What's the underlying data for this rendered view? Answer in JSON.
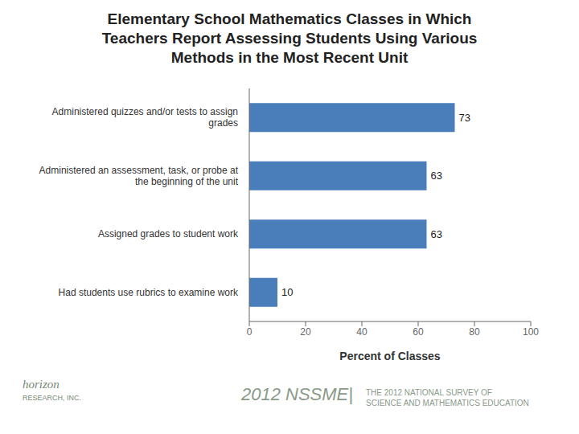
{
  "chart_data": {
    "type": "bar",
    "title": "Elementary School Mathematics Classes in Which\nTeachers Report Assessing Students Using Various\nMethods in the Most Recent Unit",
    "categories": [
      "Administered quizzes and/or tests to assign\ngrades",
      "Administered an assessment, task, or probe at\nthe beginning of the unit",
      "Assigned grades to student work",
      "Had students use rubrics to examine work"
    ],
    "values": [
      73,
      63,
      63,
      10
    ],
    "color": "#4a7eba",
    "xlabel": "Percent of Classes",
    "xlim": [
      0,
      100
    ],
    "xticks": [
      0,
      20,
      40,
      60,
      80,
      100
    ],
    "orientation": "horizontal",
    "data_labels": true,
    "grid": false,
    "annotations": [
      "2012 NSSME|",
      "THE 2012 NATIONAL SURVEY OF\nSCIENCE AND MATHEMATICS EDUCATION",
      "horizon",
      "RESEARCH, INC."
    ]
  }
}
